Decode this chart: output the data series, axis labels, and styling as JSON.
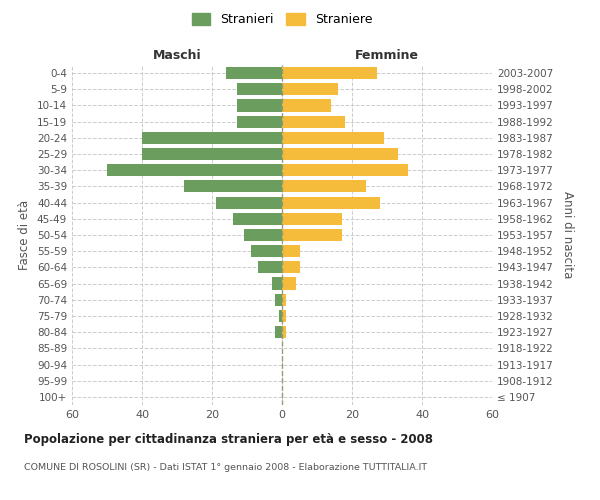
{
  "age_groups": [
    "100+",
    "95-99",
    "90-94",
    "85-89",
    "80-84",
    "75-79",
    "70-74",
    "65-69",
    "60-64",
    "55-59",
    "50-54",
    "45-49",
    "40-44",
    "35-39",
    "30-34",
    "25-29",
    "20-24",
    "15-19",
    "10-14",
    "5-9",
    "0-4"
  ],
  "birth_years": [
    "≤ 1907",
    "1908-1912",
    "1913-1917",
    "1918-1922",
    "1923-1927",
    "1928-1932",
    "1933-1937",
    "1938-1942",
    "1943-1947",
    "1948-1952",
    "1953-1957",
    "1958-1962",
    "1963-1967",
    "1968-1972",
    "1973-1977",
    "1978-1982",
    "1983-1987",
    "1988-1992",
    "1993-1997",
    "1998-2002",
    "2003-2007"
  ],
  "maschi": [
    0,
    0,
    0,
    0,
    2,
    1,
    2,
    3,
    7,
    9,
    11,
    14,
    19,
    28,
    50,
    40,
    40,
    13,
    13,
    13,
    16
  ],
  "femmine": [
    0,
    0,
    0,
    0,
    1,
    1,
    1,
    4,
    5,
    5,
    17,
    17,
    28,
    24,
    36,
    33,
    29,
    18,
    14,
    16,
    27
  ],
  "male_color": "#6b9e5e",
  "female_color": "#f5bc3c",
  "background_color": "#ffffff",
  "grid_color": "#cccccc",
  "title": "Popolazione per cittadinanza straniera per età e sesso - 2008",
  "subtitle": "COMUNE DI ROSOLINI (SR) - Dati ISTAT 1° gennaio 2008 - Elaborazione TUTTITALIA.IT",
  "xlabel_left": "Maschi",
  "xlabel_right": "Femmine",
  "ylabel_left": "Fasce di età",
  "ylabel_right": "Anni di nascita",
  "legend_male": "Stranieri",
  "legend_female": "Straniere",
  "xlim": 60,
  "bar_height": 0.75
}
